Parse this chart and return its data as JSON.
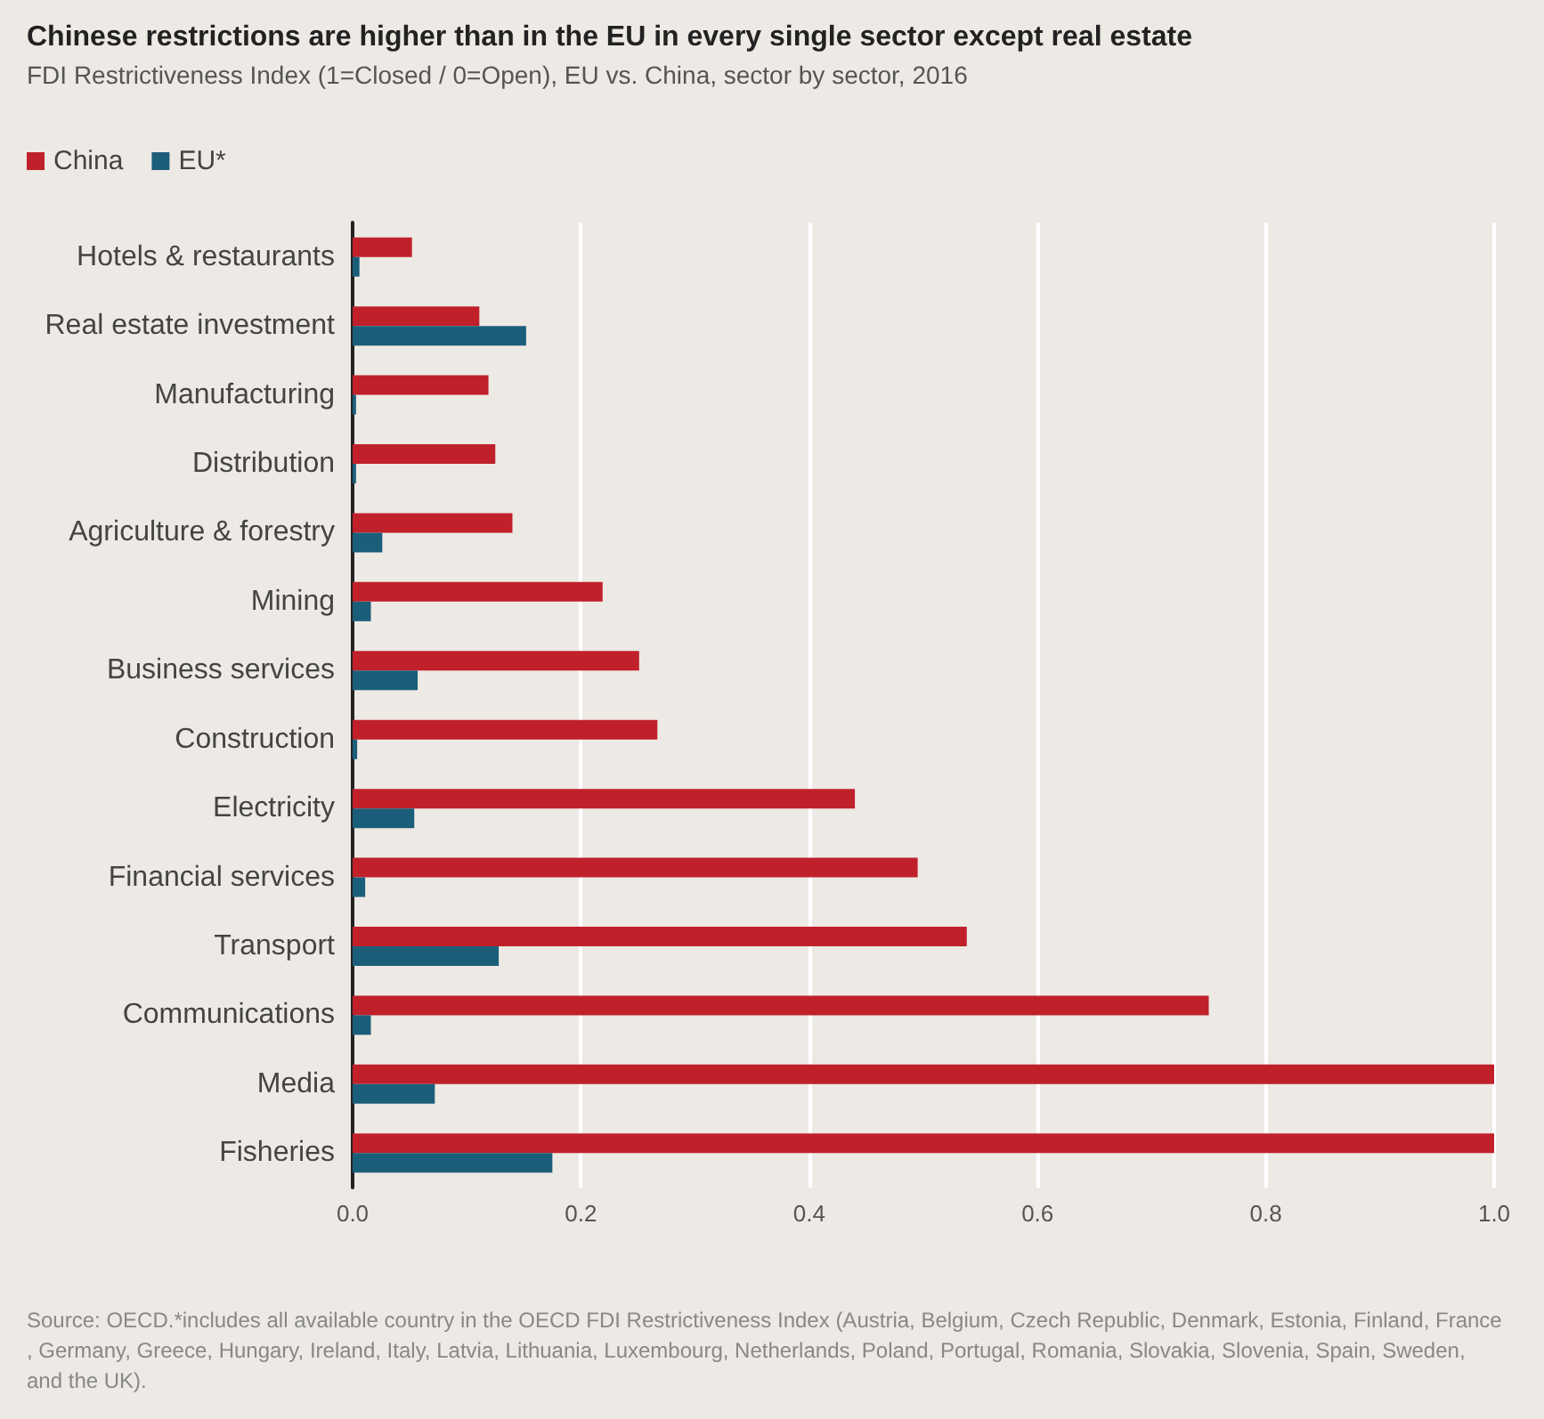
{
  "chart_data": {
    "type": "bar",
    "orientation": "horizontal",
    "title": "Chinese restrictions are higher than in the EU in every single sector except real estate",
    "subtitle": "FDI Restrictiveness Index (1=Closed / 0=Open), EU vs. China, sector by sector, 2016",
    "categories": [
      "Hotels & restaurants",
      "Real estate investment",
      "Manufacturing",
      "Distribution",
      "Agriculture & forestry",
      "Mining",
      "Business services",
      "Construction",
      "Electricity",
      "Financial services",
      "Transport",
      "Communications",
      "Media",
      "Fisheries"
    ],
    "series": [
      {
        "name": "China",
        "color": "#c0202a",
        "values": [
          0.052,
          0.111,
          0.119,
          0.125,
          0.14,
          0.219,
          0.251,
          0.267,
          0.44,
          0.495,
          0.538,
          0.75,
          1.0,
          1.0
        ]
      },
      {
        "name": "EU*",
        "color": "#1b5e7a",
        "values": [
          0.006,
          0.152,
          0.003,
          0.003,
          0.026,
          0.016,
          0.057,
          0.004,
          0.054,
          0.011,
          0.128,
          0.016,
          0.072,
          0.175
        ]
      }
    ],
    "xlim": [
      0,
      1
    ],
    "xticks": [
      {
        "value": 0,
        "label": "0.0"
      },
      {
        "value": 0.2,
        "label": "0.2"
      },
      {
        "value": 0.4,
        "label": "0.4"
      },
      {
        "value": 0.6,
        "label": "0.6"
      },
      {
        "value": 0.8,
        "label": "0.8"
      },
      {
        "value": 1,
        "label": "1.0"
      }
    ],
    "grid": "x",
    "legend": "top left",
    "annotations": [
      "Source: OECD.*includes all available country in the OECD FDI Restrictiveness Index (Austria, Belgium, Czech Republic, Denmark, Estonia, Finland, France, Germany, Greece, Hungary, Ireland, Italy, Latvia, Lithuania, Luxembourg, Netherlands, Poland, Portugal, Romania, Slovakia, Slovenia, Spain, Sweden, and the UK)."
    ]
  }
}
